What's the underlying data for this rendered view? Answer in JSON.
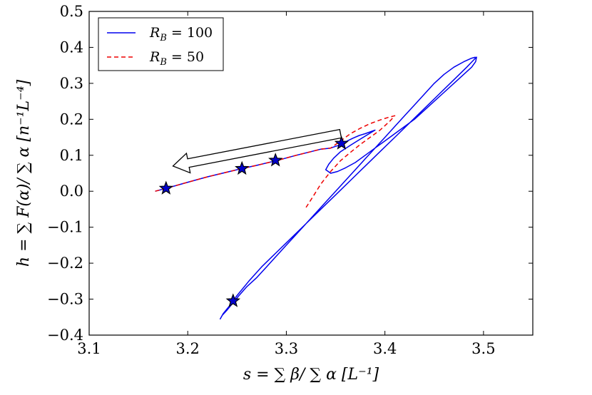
{
  "chart_data": {
    "type": "line",
    "title": "",
    "xlabel": "s = ∑ β/ ∑ α [L⁻¹]",
    "ylabel": "h = ∑ F(α)/ ∑ α [n⁻¹L⁻⁴]",
    "xlim": [
      3.1,
      3.55
    ],
    "ylim": [
      -0.4,
      0.5
    ],
    "xticks": [
      "3.1",
      "3.2",
      "3.3",
      "3.4",
      "3.5"
    ],
    "xtick_values": [
      3.1,
      3.2,
      3.3,
      3.4,
      3.5
    ],
    "yticks": [
      "−0.4",
      "−0.3",
      "−0.2",
      "−0.1",
      "0.0",
      "0.1",
      "0.2",
      "0.3",
      "0.4",
      "0.5"
    ],
    "ytick_values": [
      -0.4,
      -0.3,
      -0.2,
      -0.1,
      0.0,
      0.1,
      0.2,
      0.3,
      0.4,
      0.5
    ],
    "grid": false,
    "legend_position": "top-left",
    "series": [
      {
        "name": "R_B = 100",
        "legend_label": "R",
        "legend_sub": "B",
        "legend_value": " = 100",
        "color": "#0000ee",
        "style": "solid",
        "x": [
          3.167,
          3.178,
          3.2,
          3.22,
          3.255,
          3.27,
          3.29,
          3.31,
          3.325,
          3.335,
          3.345,
          3.35,
          3.356,
          3.362,
          3.368,
          3.374,
          3.38,
          3.386,
          3.39,
          3.384,
          3.375,
          3.365,
          3.355,
          3.348,
          3.343,
          3.34,
          3.345,
          3.352,
          3.36,
          3.37,
          3.38,
          3.39,
          3.4,
          3.41,
          3.42,
          3.43,
          3.44,
          3.45,
          3.46,
          3.47,
          3.48,
          3.488,
          3.492,
          3.493,
          3.49,
          3.483,
          3.47,
          3.455,
          3.44,
          3.425,
          3.41,
          3.395,
          3.38,
          3.365,
          3.35,
          3.335,
          3.32,
          3.305,
          3.29,
          3.275,
          3.262,
          3.25,
          3.242,
          3.236,
          3.233,
          3.235,
          3.24,
          3.246,
          3.252,
          3.26,
          3.27,
          3.28,
          3.29,
          3.3,
          3.31,
          3.32,
          3.33,
          3.34,
          3.35,
          3.36,
          3.37,
          3.38,
          3.39,
          3.4,
          3.41,
          3.42,
          3.43,
          3.44,
          3.45,
          3.46,
          3.47,
          3.48,
          3.488,
          3.492
        ],
        "y": [
          0.0,
          0.008,
          0.025,
          0.04,
          0.063,
          0.072,
          0.085,
          0.1,
          0.11,
          0.117,
          0.12,
          0.125,
          0.13,
          0.14,
          0.148,
          0.155,
          0.16,
          0.166,
          0.17,
          0.16,
          0.145,
          0.128,
          0.11,
          0.092,
          0.075,
          0.06,
          0.05,
          0.055,
          0.065,
          0.08,
          0.1,
          0.12,
          0.14,
          0.16,
          0.18,
          0.2,
          0.225,
          0.25,
          0.275,
          0.3,
          0.325,
          0.345,
          0.36,
          0.373,
          0.365,
          0.345,
          0.31,
          0.27,
          0.23,
          0.19,
          0.15,
          0.11,
          0.07,
          0.03,
          -0.01,
          -0.05,
          -0.09,
          -0.13,
          -0.17,
          -0.21,
          -0.25,
          -0.29,
          -0.32,
          -0.34,
          -0.355,
          -0.345,
          -0.33,
          -0.31,
          -0.29,
          -0.265,
          -0.24,
          -0.21,
          -0.18,
          -0.15,
          -0.12,
          -0.09,
          -0.06,
          -0.03,
          0.0,
          0.03,
          0.06,
          0.09,
          0.12,
          0.15,
          0.18,
          0.21,
          0.24,
          0.27,
          0.3,
          0.325,
          0.345,
          0.36,
          0.37,
          0.373
        ]
      },
      {
        "name": "R_B = 50",
        "legend_label": "R",
        "legend_sub": "B",
        "legend_value": " = 50",
        "color": "#ee0000",
        "style": "dashed",
        "x": [
          3.167,
          3.178,
          3.2,
          3.22,
          3.255,
          3.27,
          3.29,
          3.31,
          3.325,
          3.335,
          3.345,
          3.355,
          3.365,
          3.375,
          3.385,
          3.395,
          3.403,
          3.41,
          3.405,
          3.395,
          3.385,
          3.375,
          3.365,
          3.355,
          3.345,
          3.335,
          3.327,
          3.32
        ],
        "y": [
          0.0,
          0.008,
          0.025,
          0.04,
          0.063,
          0.072,
          0.085,
          0.1,
          0.11,
          0.117,
          0.12,
          0.14,
          0.16,
          0.175,
          0.188,
          0.198,
          0.205,
          0.21,
          0.195,
          0.17,
          0.15,
          0.13,
          0.108,
          0.085,
          0.055,
          0.02,
          -0.015,
          -0.045
        ]
      }
    ],
    "markers": {
      "shape": "star",
      "fill": "#0000cc",
      "stroke": "#000000",
      "points": [
        {
          "x": 3.178,
          "y": 0.008
        },
        {
          "x": 3.255,
          "y": 0.063
        },
        {
          "x": 3.289,
          "y": 0.086
        },
        {
          "x": 3.356,
          "y": 0.133
        },
        {
          "x": 3.246,
          "y": -0.305
        }
      ]
    },
    "annotation_arrow": {
      "from": {
        "x": 3.355,
        "y": 0.16
      },
      "to": {
        "x": 3.185,
        "y": 0.07
      },
      "style": "hollow"
    }
  }
}
